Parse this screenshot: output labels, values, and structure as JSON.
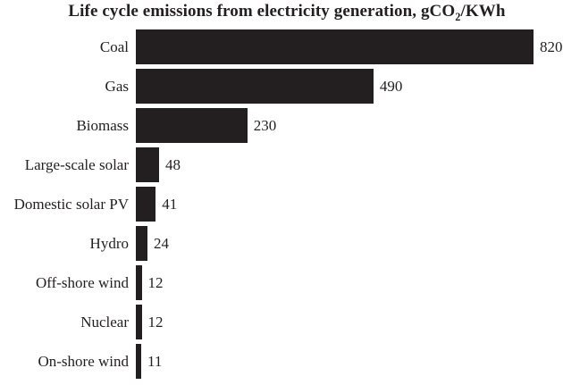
{
  "title": {
    "text": "Life cycle emissions from electricity generation, gCO2/KWh",
    "prefix": "Life cycle emissions from electricity generation, gCO",
    "subscript": "2",
    "suffix": "/KWh"
  },
  "chart_data": {
    "type": "bar",
    "orientation": "horizontal",
    "title": "Life cycle emissions from electricity generation, gCO2/KWh",
    "categories": [
      "Coal",
      "Gas",
      "Biomass",
      "Large-scale solar",
      "Domestic solar PV",
      "Hydro",
      "Off-shore wind",
      "Nuclear",
      "On-shore wind"
    ],
    "values": [
      820,
      490,
      230,
      48,
      41,
      24,
      12,
      12,
      11
    ],
    "value_labels": [
      "820",
      "490",
      "230",
      "48",
      "41",
      "24",
      "12",
      "12",
      "11"
    ],
    "xlabel": "",
    "ylabel": "",
    "xlim": [
      0,
      820
    ],
    "grid": false,
    "legend": null,
    "bar_color": "#231f20",
    "text_color": "#231f20",
    "background_color": "#ffffff"
  }
}
